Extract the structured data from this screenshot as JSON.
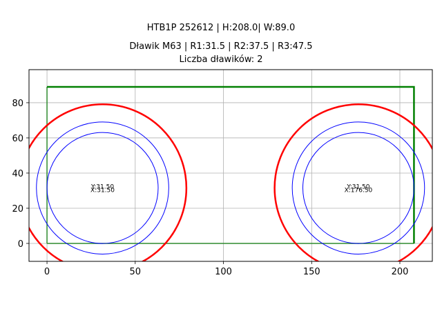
{
  "header": {
    "title_line1": "HTB1P 252612 | H:208.0| W:89.0",
    "title_line2": "Dławik M63 | R1:31.5 | R2:37.5 | R3:47.5",
    "title_line3": "Liczba dławików: 2"
  },
  "colors": {
    "frame": "#000000",
    "grid": "#b0b0b0",
    "rect_outer": "#008000",
    "rect_inner": "#2e8b2e",
    "circle_outer": "#ff0000",
    "circle_inner": "#0000ff"
  },
  "chart_data": {
    "type": "scatter",
    "title": "HTB1P 252612 | H:208.0| W:89.0\nDławik M63 | R1:31.5 | R2:37.5 | R3:47.5\nLiczba dławików: 2",
    "xlabel": "",
    "ylabel": "",
    "xlim": [
      -10.2,
      218.4
    ],
    "ylim": [
      -10.2,
      98.8
    ],
    "grid": true,
    "legend": null,
    "xticks": [
      0,
      50,
      100,
      150,
      200
    ],
    "yticks": [
      0,
      20,
      40,
      60,
      80
    ],
    "rectangle": {
      "x": 0,
      "y": 0,
      "width": 208.0,
      "height": 89.0
    },
    "chokes": [
      {
        "x": 31.5,
        "y": 31.5,
        "label_x": "X:31.50",
        "label_y": "Y:31.50",
        "radii": {
          "R1": 31.5,
          "R2": 37.5,
          "R3": 47.5
        }
      },
      {
        "x": 176.5,
        "y": 31.5,
        "label_x": "X:176.50",
        "label_y": "Y:31.50",
        "radii": {
          "R1": 31.5,
          "R2": 37.5,
          "R3": 47.5
        }
      }
    ]
  }
}
